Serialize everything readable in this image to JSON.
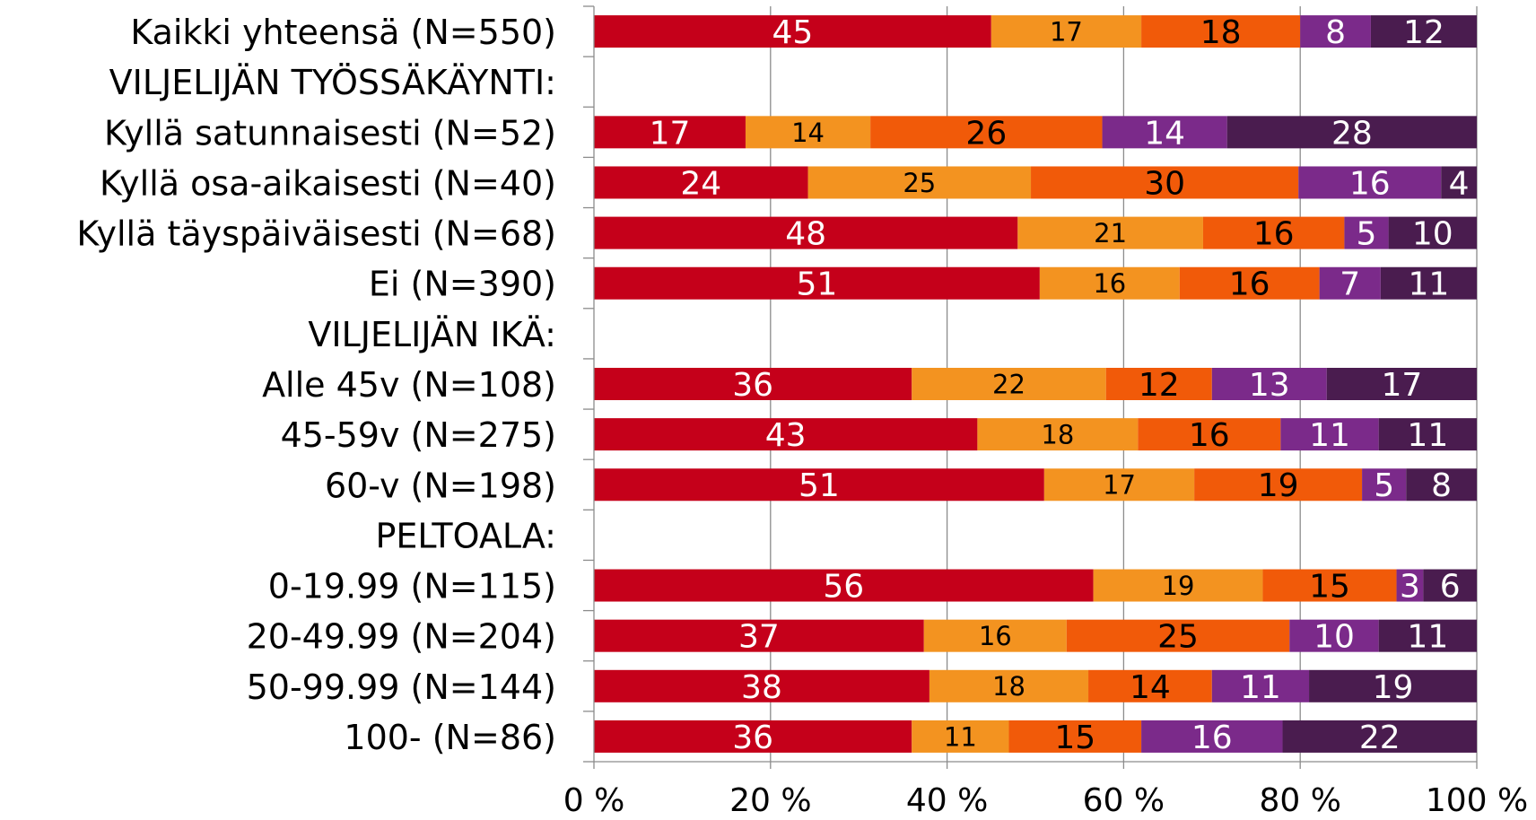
{
  "chart_data": {
    "type": "bar",
    "orientation": "horizontal",
    "stacked": true,
    "title": "",
    "xlabel": "",
    "ylabel": "",
    "xlim": [
      0,
      100
    ],
    "x_ticks": [
      "0 %",
      "20 %",
      "40 %",
      "60 %",
      "80 %",
      "100 %"
    ],
    "grid": "vertical",
    "legend": "none",
    "categories": [
      "Kaikki yhteensä (N=550)",
      "VILJELIJÄN TYÖSSÄKÄYNTI:",
      "Kyllä satunnaisesti (N=52)",
      "Kyllä osa-aikaisesti (N=40)",
      "Kyllä täyspäiväisesti (N=68)",
      "Ei (N=390)",
      "VILJELIJÄN IKÄ:",
      "Alle 45v (N=108)",
      "45-59v (N=275)",
      "60-v (N=198)",
      "PELTOALA:",
      "0-19.99 (N=115)",
      "20-49.99 (N=204)",
      "50-99.99 (N=144)",
      "100- (N=86)"
    ],
    "series": [
      {
        "color": "#c5001a",
        "label_color": "#ffffff",
        "values": [
          45,
          null,
          17,
          24,
          48,
          51,
          null,
          36,
          43,
          51,
          null,
          56,
          37,
          38,
          36
        ]
      },
      {
        "color": "#f39320",
        "label_color": "#000000",
        "values": [
          17,
          null,
          14,
          25,
          21,
          16,
          null,
          22,
          18,
          17,
          null,
          19,
          16,
          18,
          11
        ]
      },
      {
        "color": "#f15a09",
        "label_color": "#000000",
        "values": [
          18,
          null,
          26,
          30,
          16,
          16,
          null,
          12,
          16,
          19,
          null,
          15,
          25,
          14,
          15
        ]
      },
      {
        "color": "#7b2a8a",
        "label_color": "#ffffff",
        "values": [
          8,
          null,
          14,
          16,
          5,
          7,
          null,
          13,
          11,
          5,
          null,
          3,
          10,
          11,
          16
        ]
      },
      {
        "color": "#4a1c4f",
        "label_color": "#ffffff",
        "values": [
          12,
          null,
          28,
          4,
          10,
          11,
          null,
          17,
          11,
          8,
          null,
          6,
          11,
          19,
          22
        ]
      }
    ]
  }
}
